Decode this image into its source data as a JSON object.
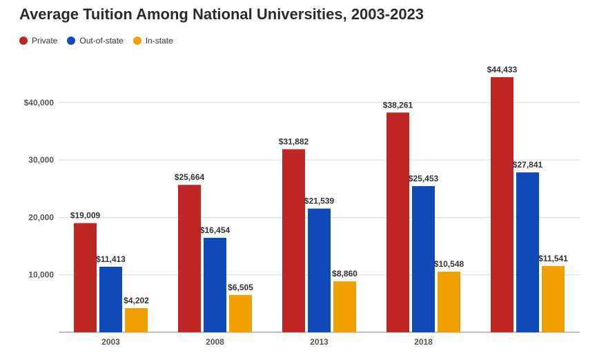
{
  "chart_data": {
    "type": "bar",
    "title": "Average Tuition Among National Universities, 2003-2023",
    "xlabel": "",
    "ylabel": "",
    "categories": [
      "2003",
      "2008",
      "2013",
      "2018",
      ""
    ],
    "series": [
      {
        "name": "Private",
        "color": "#bf2626",
        "values": [
          19009,
          25664,
          31882,
          38261,
          44433
        ],
        "labels": [
          "$19,009",
          "$25,664",
          "$31,882",
          "$38,261",
          "$44,433"
        ]
      },
      {
        "name": "Out-of-state",
        "color": "#0f4bb8",
        "values": [
          11413,
          16454,
          21539,
          25453,
          27841
        ],
        "labels": [
          "$11,413",
          "$16,454",
          "$21,539",
          "$25,453",
          "$27,841"
        ]
      },
      {
        "name": "In-state",
        "color": "#f0a000",
        "values": [
          4202,
          6505,
          8860,
          10548,
          11541
        ],
        "labels": [
          "$4,202",
          "$6,505",
          "$8,860",
          "$10,548",
          "$11,541"
        ]
      }
    ],
    "ylim": [
      0,
      46000
    ],
    "yticks": [
      10000,
      20000,
      30000,
      40000
    ],
    "ytick_labels": [
      "10,000",
      "20,000",
      "30,000",
      "$40,000"
    ],
    "grid": true,
    "legend_position": "top-left"
  }
}
